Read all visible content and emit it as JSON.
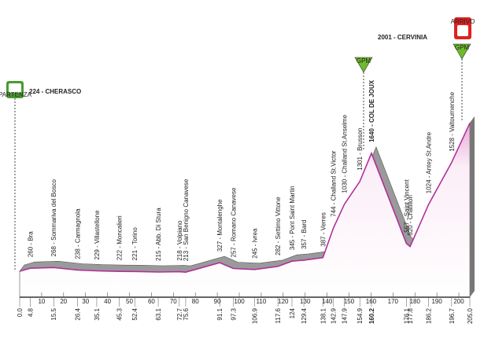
{
  "start": {
    "label": "224 - CHERASCO",
    "badge": "PARTENZA",
    "km": 0,
    "km_label": "0.0",
    "altitude": 224
  },
  "finish": {
    "label": "2001 - CERVINIA",
    "badge": "ARRIVO",
    "km": 205,
    "km_label": "205.0",
    "altitude": 2001,
    "gpm": "GPM"
  },
  "col_gpm": "GPM",
  "waypoints": [
    {
      "label": "260 - Bra",
      "altitude": 260,
      "km": 4.8
    },
    {
      "label": "268 - Sommariva del Bosco",
      "altitude": 268,
      "km": 15.5
    },
    {
      "label": "238 - Carmagnola",
      "altitude": 238,
      "km": 26.4
    },
    {
      "label": "229 - Villastellone",
      "altitude": 229,
      "km": 35.1
    },
    {
      "label": "222 - Moncalieri",
      "altitude": 222,
      "km": 45.3
    },
    {
      "label": "221 - Torino",
      "altitude": 221,
      "km": 52.4
    },
    {
      "label": "215 - Abb. Di Stura",
      "altitude": 215,
      "km": 63.1
    },
    {
      "label": "218 - Volpiano",
      "altitude": 218,
      "km": 72.7
    },
    {
      "label": "213 - San Benigno Canavese",
      "altitude": 213,
      "km": 75.6
    },
    {
      "label": "327 - Montalenghe",
      "altitude": 327,
      "km": 91.1
    },
    {
      "label": "257 - Romano Canavese",
      "altitude": 257,
      "km": 97.3
    },
    {
      "label": "245 - Ivrea",
      "altitude": 245,
      "km": 106.9
    },
    {
      "label": "282 - Settimo Vittone",
      "altitude": 282,
      "km": 117.6
    },
    {
      "label": "345 - Pont Saint Martin",
      "altitude": 345,
      "km": 124.0
    },
    {
      "label": "357 - Bard",
      "altitude": 357,
      "km": 129.4
    },
    {
      "label": "387 - Verres",
      "altitude": 387,
      "km": 138.1
    },
    {
      "label": "744 - Challand St.Victor",
      "altitude": 744,
      "km": 142.9
    },
    {
      "label": "1030 - Challand St.Anselme",
      "altitude": 1030,
      "km": 147.9
    },
    {
      "label": "1301 - Brusson",
      "altitude": 1301,
      "km": 154.9
    },
    {
      "label": "1640 - COL DE JOUX",
      "altitude": 1640,
      "km": 160.2,
      "bold": true
    },
    {
      "label": "557 - Saint Vincent",
      "altitude": 557,
      "km": 176.1
    },
    {
      "label": "520 - Chatillon",
      "altitude": 520,
      "km": 177.8
    },
    {
      "label": "1024 - Antey St.Andre",
      "altitude": 1024,
      "km": 186.2
    },
    {
      "label": "1528 - Valtournenche",
      "altitude": 1528,
      "km": 196.7
    }
  ],
  "km_ticks": [
    10,
    20,
    30,
    40,
    50,
    60,
    70,
    80,
    90,
    100,
    110,
    120,
    130,
    140,
    150,
    160,
    170,
    180,
    190,
    200
  ]
}
